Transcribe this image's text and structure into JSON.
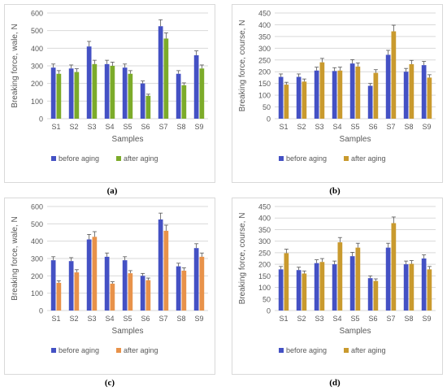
{
  "colors": {
    "before": "#4451c4",
    "after_green": "#7cab2a",
    "after_orange": "#e8924a",
    "after_gold": "#c99a2e",
    "grid": "#d9d9d9",
    "text": "#595959"
  },
  "chart_data": [
    {
      "id": "a",
      "panel_label": "(a)",
      "type": "bar",
      "title": "",
      "xlabel": "Samples",
      "ylabel": "Breaking force, wale, N",
      "categories": [
        "S1",
        "S2",
        "S3",
        "S4",
        "S5",
        "S6",
        "S7",
        "S8",
        "S9"
      ],
      "ylim": [
        0,
        600
      ],
      "yticks": [
        0,
        100,
        200,
        300,
        400,
        500,
        600
      ],
      "grid": true,
      "legend": "bottom",
      "series": [
        {
          "name": "before aging",
          "color_key": "before",
          "values": [
            290,
            285,
            410,
            310,
            290,
            200,
            525,
            255,
            360
          ]
        },
        {
          "name": "after aging",
          "color_key": "after_green",
          "values": [
            255,
            265,
            310,
            300,
            255,
            130,
            455,
            190,
            285
          ]
        }
      ]
    },
    {
      "id": "b",
      "panel_label": "(b)",
      "type": "bar",
      "title": "",
      "xlabel": "Samples",
      "ylabel": "Breaking force, course, N",
      "categories": [
        "S1",
        "S2",
        "S3",
        "S4",
        "S5",
        "S6",
        "S7",
        "S8",
        "S9"
      ],
      "ylim": [
        0,
        450
      ],
      "yticks": [
        0,
        50,
        100,
        150,
        200,
        250,
        300,
        350,
        400,
        450
      ],
      "grid": true,
      "legend": "bottom",
      "series": [
        {
          "name": "before aging",
          "color_key": "before",
          "values": [
            178,
            178,
            205,
            203,
            235,
            140,
            272,
            200,
            228
          ]
        },
        {
          "name": "after aging",
          "color_key": "after_gold",
          "values": [
            145,
            158,
            240,
            205,
            222,
            195,
            372,
            232,
            175
          ]
        }
      ]
    },
    {
      "id": "c",
      "panel_label": "(c)",
      "type": "bar",
      "title": "",
      "xlabel": "Samples",
      "ylabel": "Breaking force, wale, N",
      "categories": [
        "S1",
        "S2",
        "S3",
        "S4",
        "S5",
        "S6",
        "S7",
        "S8",
        "S9"
      ],
      "ylim": [
        0,
        600
      ],
      "yticks": [
        0,
        100,
        200,
        300,
        400,
        500,
        600
      ],
      "grid": true,
      "legend": "bottom",
      "series": [
        {
          "name": "before aging",
          "color_key": "before",
          "values": [
            290,
            285,
            410,
            310,
            290,
            200,
            525,
            255,
            360
          ]
        },
        {
          "name": "after aging",
          "color_key": "after_orange",
          "values": [
            160,
            220,
            425,
            155,
            215,
            175,
            460,
            230,
            310
          ]
        }
      ]
    },
    {
      "id": "d",
      "panel_label": "(d)",
      "type": "bar",
      "title": "",
      "xlabel": "Samples",
      "ylabel": "Breaking force, course, N",
      "categories": [
        "S1",
        "S2",
        "S3",
        "S4",
        "S5",
        "S6",
        "S7",
        "S8",
        "S9"
      ],
      "ylim": [
        0,
        450
      ],
      "yticks": [
        0,
        50,
        100,
        150,
        200,
        250,
        300,
        350,
        400,
        450
      ],
      "grid": true,
      "legend": "bottom",
      "series": [
        {
          "name": "before aging",
          "color_key": "before",
          "values": [
            178,
            175,
            205,
            200,
            235,
            140,
            272,
            200,
            225
          ]
        },
        {
          "name": "after aging",
          "color_key": "after_gold",
          "values": [
            248,
            160,
            210,
            295,
            272,
            128,
            378,
            202,
            178
          ]
        }
      ]
    }
  ]
}
